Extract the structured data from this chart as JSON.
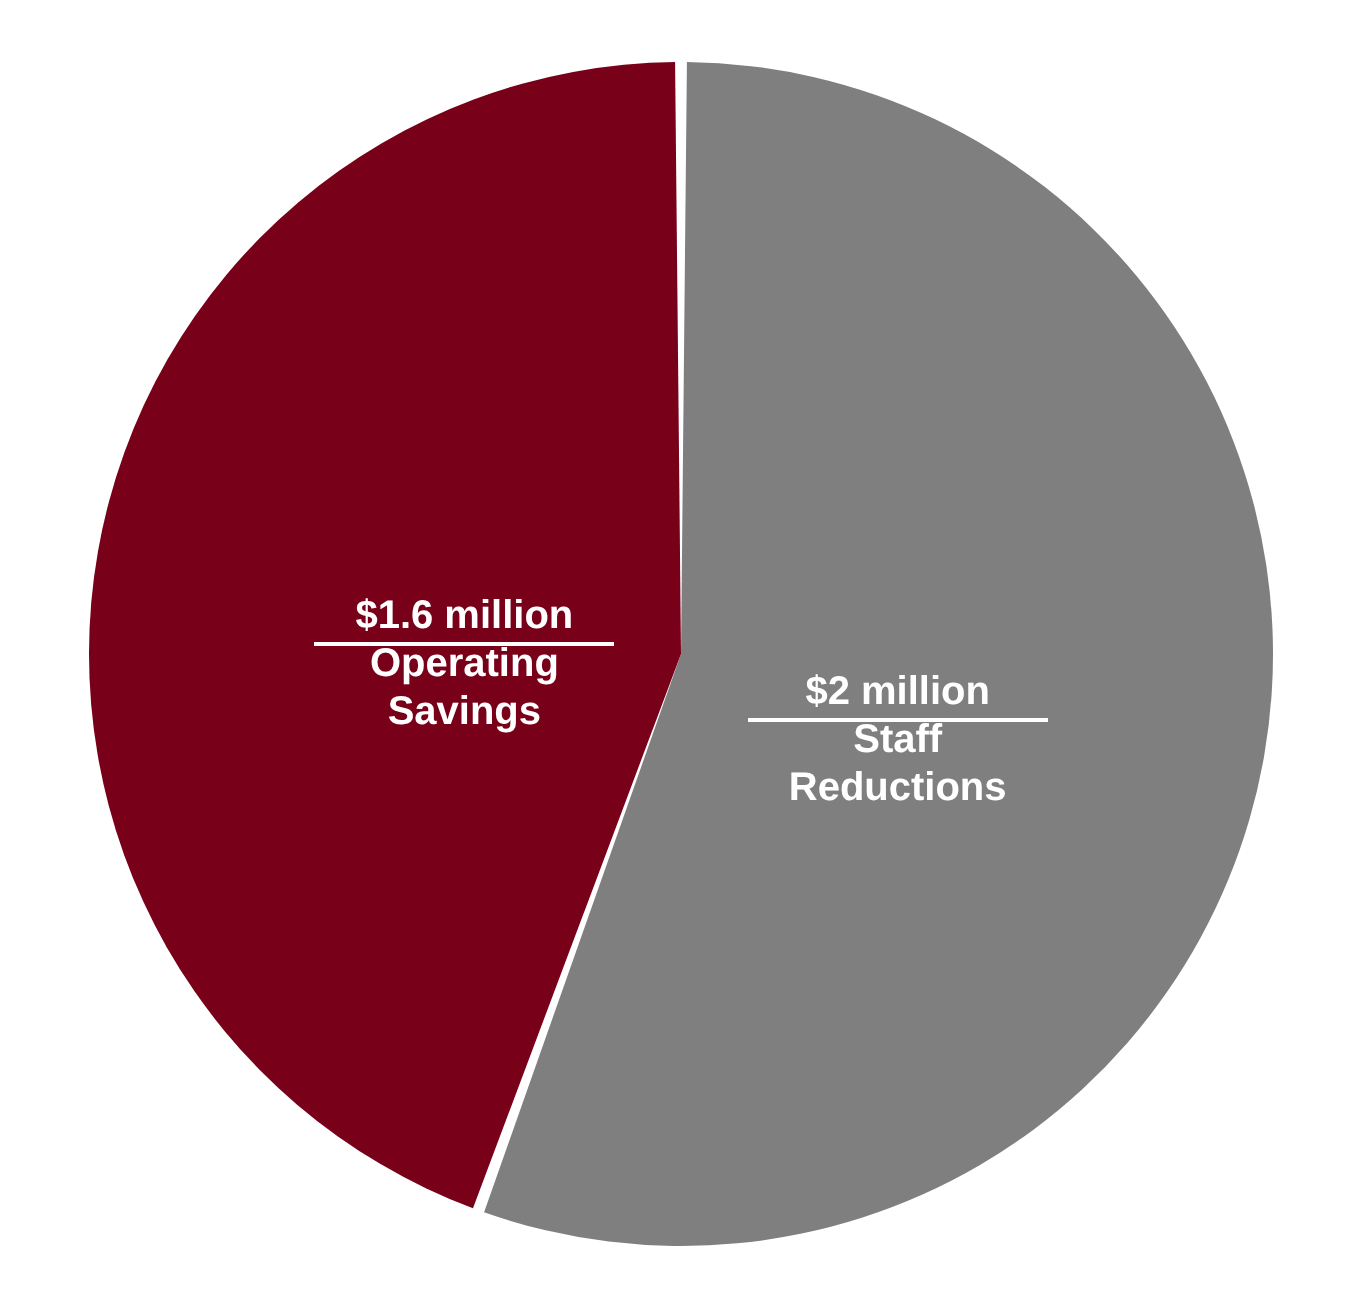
{
  "chart_data": {
    "type": "pie",
    "categories": [
      "Staff Reductions",
      "Operating Savings"
    ],
    "values": [
      2,
      1.6
    ],
    "value_labels": [
      "$2 million",
      "$1.6 million"
    ],
    "colors": [
      "#7f7f7f",
      "#780019"
    ]
  }
}
